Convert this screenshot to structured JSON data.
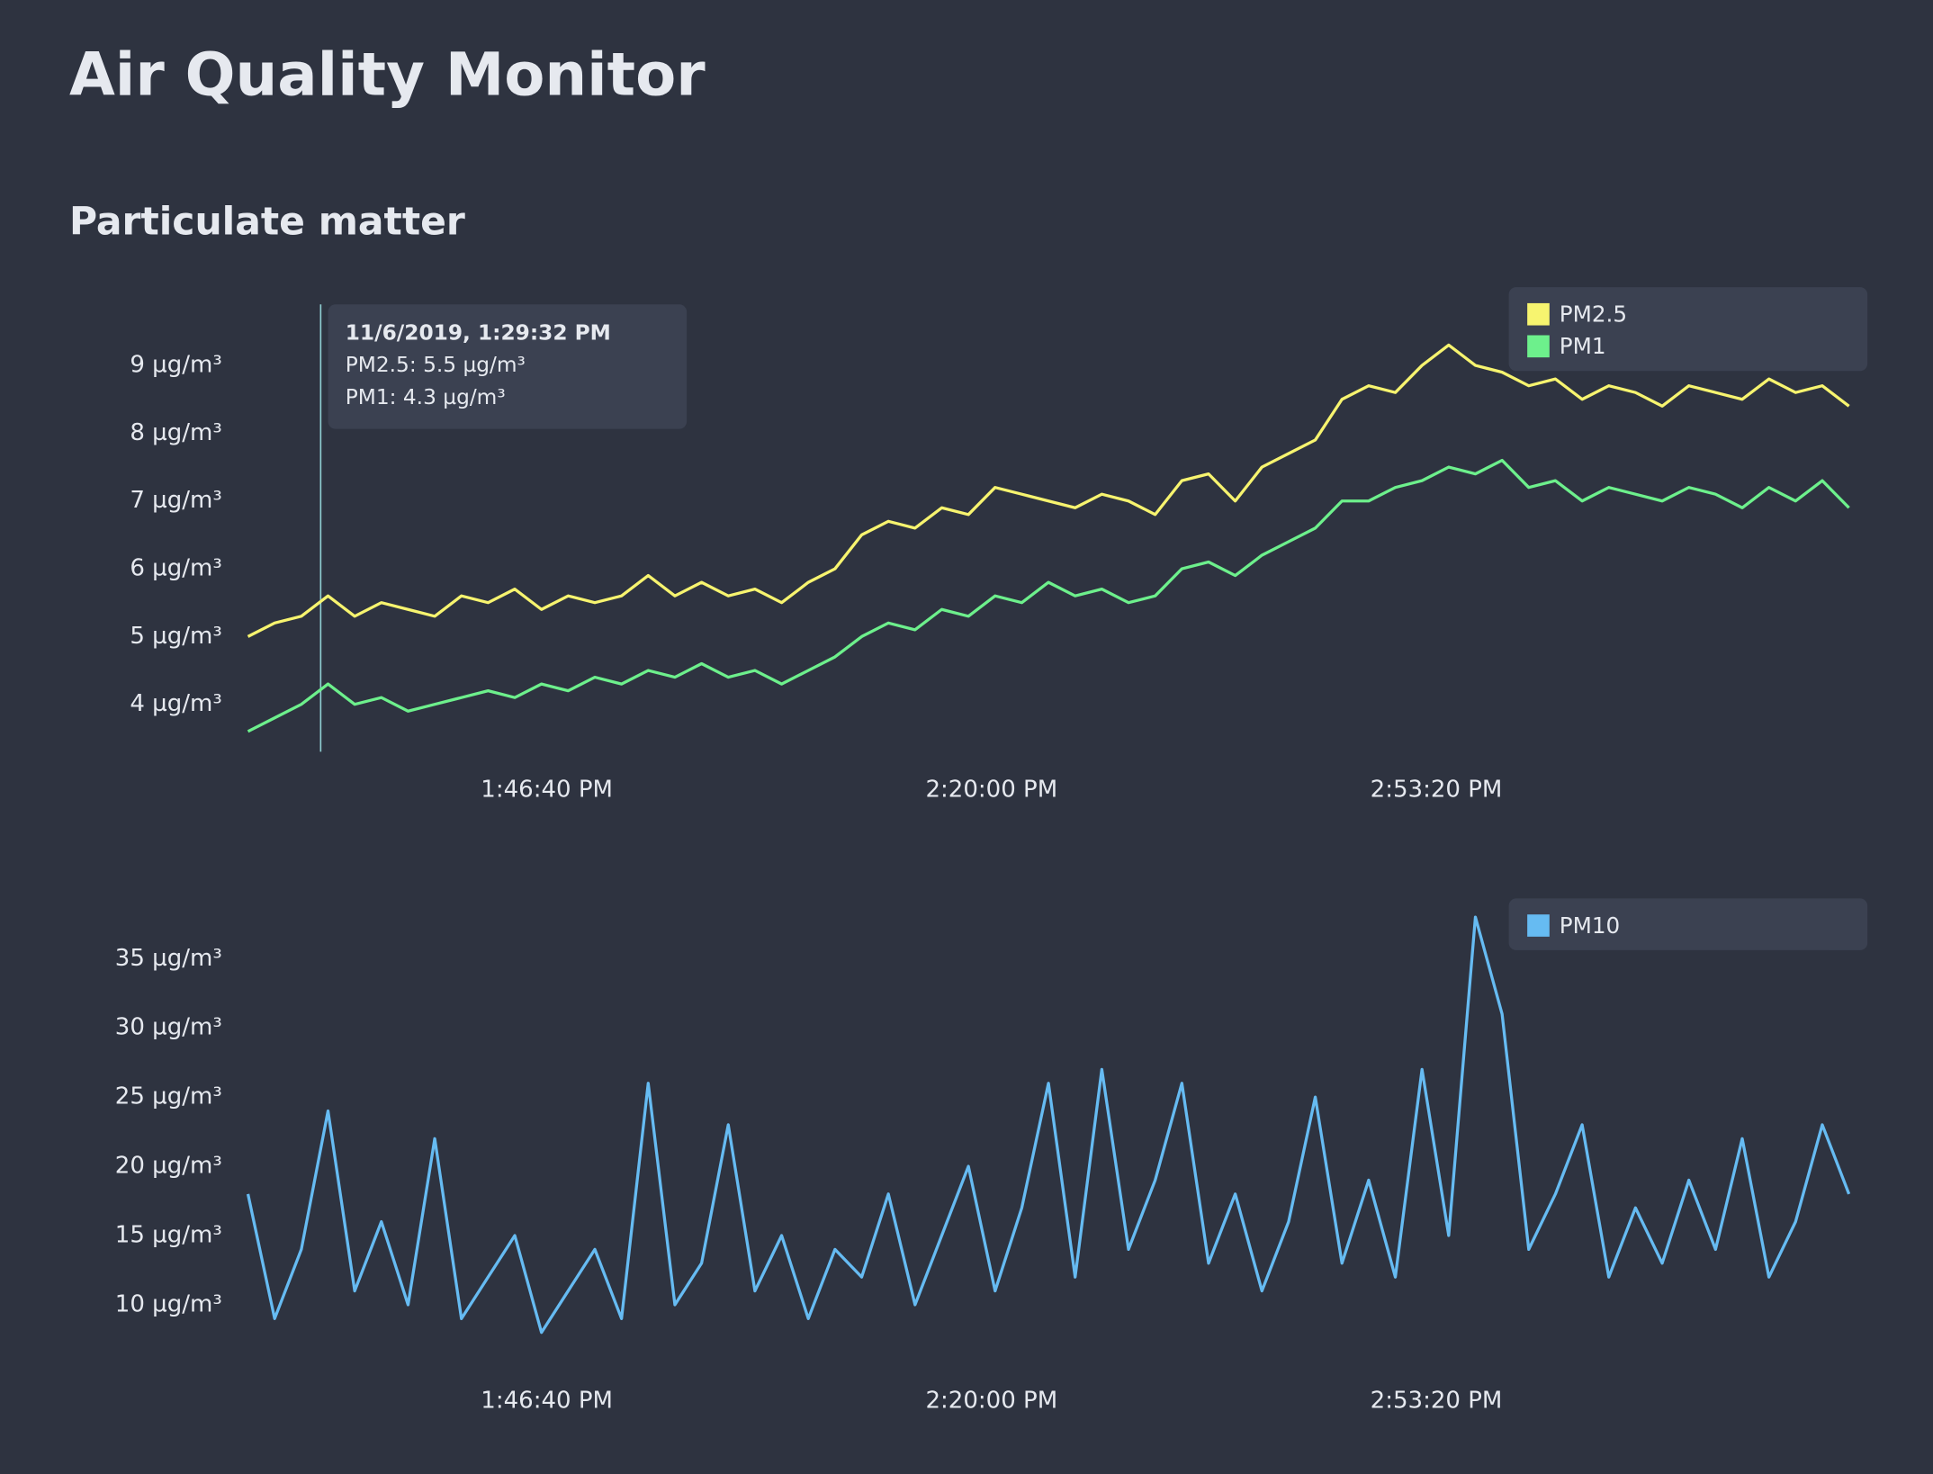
{
  "header": {
    "title": "Air Quality Monitor",
    "subtitle": "Particulate matter"
  },
  "chart_data": [
    {
      "type": "line",
      "x": [
        "1:24:16 PM",
        "1:26:16 PM",
        "1:28:16 PM",
        "1:30:16 PM",
        "1:32:16 PM",
        "1:34:16 PM",
        "1:36:16 PM",
        "1:38:16 PM",
        "1:40:16 PM",
        "1:42:16 PM",
        "1:44:16 PM",
        "1:46:16 PM",
        "1:48:16 PM",
        "1:50:16 PM",
        "1:52:16 PM",
        "1:54:16 PM",
        "1:56:16 PM",
        "1:58:16 PM",
        "2:00:16 PM",
        "2:02:16 PM",
        "2:04:16 PM",
        "2:06:16 PM",
        "2:08:16 PM",
        "2:10:16 PM",
        "2:12:16 PM",
        "2:14:16 PM",
        "2:16:16 PM",
        "2:18:16 PM",
        "2:20:16 PM",
        "2:22:16 PM",
        "2:24:16 PM",
        "2:26:16 PM",
        "2:28:16 PM",
        "2:30:16 PM",
        "2:32:16 PM",
        "2:34:16 PM",
        "2:36:16 PM",
        "2:38:16 PM",
        "2:40:16 PM",
        "2:42:16 PM",
        "2:44:16 PM",
        "2:46:16 PM",
        "2:48:16 PM",
        "2:50:16 PM",
        "2:52:16 PM",
        "2:54:16 PM",
        "2:56:16 PM",
        "2:58:16 PM",
        "3:00:16 PM",
        "3:02:16 PM",
        "3:04:16 PM",
        "3:06:16 PM",
        "3:08:16 PM",
        "3:10:16 PM",
        "3:12:16 PM",
        "3:14:16 PM",
        "3:16:16 PM",
        "3:18:16 PM",
        "3:20:16 PM",
        "3:22:16 PM",
        "3:24:16 PM"
      ],
      "series": [
        {
          "name": "PM2.5",
          "color": "#f7f46f",
          "values": [
            5.0,
            5.2,
            5.3,
            5.6,
            5.3,
            5.5,
            5.4,
            5.3,
            5.6,
            5.5,
            5.7,
            5.4,
            5.6,
            5.5,
            5.6,
            5.9,
            5.6,
            5.8,
            5.6,
            5.7,
            5.5,
            5.8,
            6.0,
            6.5,
            6.7,
            6.6,
            6.9,
            6.8,
            7.2,
            7.1,
            7.0,
            6.9,
            7.1,
            7.0,
            6.8,
            7.3,
            7.4,
            7.0,
            7.5,
            7.7,
            7.9,
            8.5,
            8.7,
            8.6,
            9.0,
            9.3,
            9.0,
            8.9,
            8.7,
            8.8,
            8.5,
            8.7,
            8.6,
            8.4,
            8.7,
            8.6,
            8.5,
            8.8,
            8.6,
            8.7,
            8.4
          ]
        },
        {
          "name": "PM1",
          "color": "#6df08c",
          "values": [
            3.6,
            3.8,
            4.0,
            4.3,
            4.0,
            4.1,
            3.9,
            4.0,
            4.1,
            4.2,
            4.1,
            4.3,
            4.2,
            4.4,
            4.3,
            4.5,
            4.4,
            4.6,
            4.4,
            4.5,
            4.3,
            4.5,
            4.7,
            5.0,
            5.2,
            5.1,
            5.4,
            5.3,
            5.6,
            5.5,
            5.8,
            5.6,
            5.7,
            5.5,
            5.6,
            6.0,
            6.1,
            5.9,
            6.2,
            6.4,
            6.6,
            7.0,
            7.0,
            7.2,
            7.3,
            7.5,
            7.4,
            7.6,
            7.2,
            7.3,
            7.0,
            7.2,
            7.1,
            7.0,
            7.2,
            7.1,
            6.9,
            7.2,
            7.0,
            7.3,
            6.9
          ]
        }
      ],
      "xlim": [
        "1:24:16 PM",
        "3:24:16 PM"
      ],
      "xticks": [
        "1:46:40 PM",
        "2:20:00 PM",
        "2:53:20 PM"
      ],
      "ylim": [
        3.3,
        9.9
      ],
      "yticks": [
        {
          "value": 4,
          "label": "4 µg/m³"
        },
        {
          "value": 5,
          "label": "5 µg/m³"
        },
        {
          "value": 6,
          "label": "6 µg/m³"
        },
        {
          "value": 7,
          "label": "7 µg/m³"
        },
        {
          "value": 8,
          "label": "8 µg/m³"
        },
        {
          "value": 9,
          "label": "9 µg/m³"
        }
      ],
      "grid": false,
      "legend": "top-right",
      "tooltip": {
        "title": "11/6/2019, 1:29:32 PM",
        "lines": [
          "PM2.5: 5.5 µg/m³",
          "PM1: 4.3 µg/m³"
        ]
      }
    },
    {
      "type": "line",
      "x": [
        "1:24:16 PM",
        "1:26:16 PM",
        "1:28:16 PM",
        "1:30:16 PM",
        "1:32:16 PM",
        "1:34:16 PM",
        "1:36:16 PM",
        "1:38:16 PM",
        "1:40:16 PM",
        "1:42:16 PM",
        "1:44:16 PM",
        "1:46:16 PM",
        "1:48:16 PM",
        "1:50:16 PM",
        "1:52:16 PM",
        "1:54:16 PM",
        "1:56:16 PM",
        "1:58:16 PM",
        "2:00:16 PM",
        "2:02:16 PM",
        "2:04:16 PM",
        "2:06:16 PM",
        "2:08:16 PM",
        "2:10:16 PM",
        "2:12:16 PM",
        "2:14:16 PM",
        "2:16:16 PM",
        "2:18:16 PM",
        "2:20:16 PM",
        "2:22:16 PM",
        "2:24:16 PM",
        "2:26:16 PM",
        "2:28:16 PM",
        "2:30:16 PM",
        "2:32:16 PM",
        "2:34:16 PM",
        "2:36:16 PM",
        "2:38:16 PM",
        "2:40:16 PM",
        "2:42:16 PM",
        "2:44:16 PM",
        "2:46:16 PM",
        "2:48:16 PM",
        "2:50:16 PM",
        "2:52:16 PM",
        "2:54:16 PM",
        "2:56:16 PM",
        "2:58:16 PM",
        "3:00:16 PM",
        "3:02:16 PM",
        "3:04:16 PM",
        "3:06:16 PM",
        "3:08:16 PM",
        "3:10:16 PM",
        "3:12:16 PM",
        "3:14:16 PM",
        "3:16:16 PM",
        "3:18:16 PM",
        "3:20:16 PM",
        "3:22:16 PM",
        "3:24:16 PM"
      ],
      "series": [
        {
          "name": "PM10",
          "color": "#66bbf2",
          "values": [
            18,
            9,
            14,
            24,
            11,
            16,
            10,
            22,
            9,
            12,
            15,
            8,
            11,
            14,
            9,
            26,
            10,
            13,
            23,
            11,
            15,
            9,
            14,
            12,
            18,
            10,
            15,
            20,
            11,
            17,
            26,
            12,
            27,
            14,
            19,
            26,
            13,
            18,
            11,
            16,
            25,
            13,
            19,
            12,
            27,
            15,
            38,
            31,
            14,
            18,
            23,
            12,
            17,
            13,
            19,
            14,
            22,
            12,
            16,
            23,
            18
          ]
        }
      ],
      "xlim": [
        "1:24:16 PM",
        "3:24:16 PM"
      ],
      "xticks": [
        "1:46:40 PM",
        "2:20:00 PM",
        "2:53:20 PM"
      ],
      "ylim": [
        5.7,
        38.1
      ],
      "yticks": [
        {
          "value": 10,
          "label": "10 µg/m³"
        },
        {
          "value": 15,
          "label": "15 µg/m³"
        },
        {
          "value": 20,
          "label": "20 µg/m³"
        },
        {
          "value": 25,
          "label": "25 µg/m³"
        },
        {
          "value": 30,
          "label": "30 µg/m³"
        },
        {
          "value": 35,
          "label": "35 µg/m³"
        }
      ],
      "grid": false,
      "legend": "top-right"
    }
  ]
}
